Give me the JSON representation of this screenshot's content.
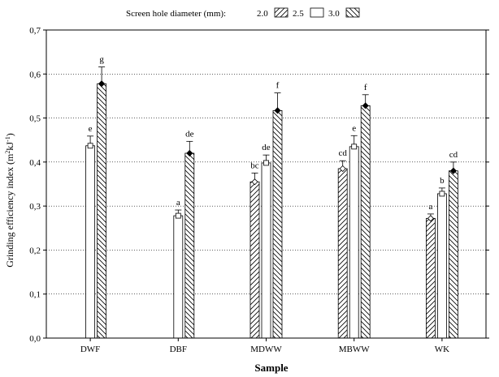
{
  "chart_data": {
    "type": "bar",
    "title": "",
    "xlabel": "Sample",
    "ylabel_main": "Grinding efficiency index (m",
    "ylabel_sup1": "2",
    "ylabel_mid": "kJ",
    "ylabel_sup2": "-1",
    "ylabel_end": ")",
    "ylim": [
      0.0,
      0.7
    ],
    "yticks": [
      "0,0",
      "0,1",
      "0,2",
      "0,3",
      "0,4",
      "0,5",
      "0,6",
      "0,7"
    ],
    "grid": true,
    "legend": {
      "placement": "top-center",
      "prefix": "Screen hole diameter (mm):",
      "labels": [
        "2.0",
        "2.5",
        "3.0"
      ]
    },
    "categories": [
      "DWF",
      "DBF",
      "MDWW",
      "MBWW",
      "WK"
    ],
    "series": [
      {
        "name": "2.0",
        "values": [
          null,
          null,
          0.355,
          0.385,
          0.272
        ],
        "errors": [
          null,
          null,
          0.02,
          0.018,
          0.01
        ],
        "letters": [
          "",
          "",
          "bc",
          "cd",
          "a"
        ]
      },
      {
        "name": "2.5",
        "values": [
          0.437,
          0.278,
          0.398,
          0.435,
          0.328
        ],
        "errors": [
          0.022,
          0.013,
          0.018,
          0.025,
          0.013
        ],
        "letters": [
          "e",
          "a",
          "de",
          "e",
          "b"
        ]
      },
      {
        "name": "3.0",
        "values": [
          0.578,
          0.42,
          0.517,
          0.528,
          0.38
        ],
        "errors": [
          0.038,
          0.027,
          0.04,
          0.025,
          0.02
        ],
        "letters": [
          "g",
          "de",
          "f",
          "f",
          "cd"
        ]
      }
    ]
  }
}
